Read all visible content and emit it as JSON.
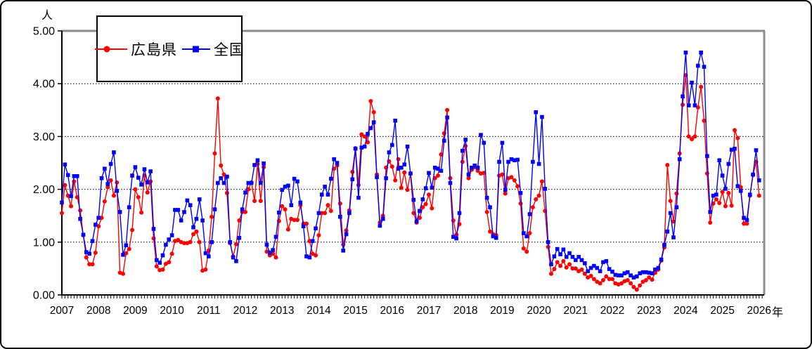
{
  "chart_data": {
    "type": "line",
    "title": "",
    "y_axis": {
      "unit": "人",
      "min": 0,
      "max": 5,
      "tick_labels": [
        "0.00",
        "1.00",
        "2.00",
        "3.00",
        "4.00",
        "5.00"
      ],
      "gridlines": "dotted at 1.00-4.00"
    },
    "x_axis": {
      "unit": "年",
      "interval": "monthly",
      "start": "2007-01",
      "end": "2026-01",
      "years": [
        2007,
        2008,
        2009,
        2010,
        2011,
        2012,
        2013,
        2014,
        2015,
        2016,
        2017,
        2018,
        2019,
        2020,
        2021,
        2022,
        2023,
        2024,
        2025,
        2026
      ]
    },
    "legend_position": "top-left",
    "series": [
      {
        "name": "広島県",
        "color": "#FF0000",
        "marker": "circle",
        "values": [
          1.55,
          2.08,
          1.88,
          1.68,
          2.15,
          1.85,
          1.6,
          1.13,
          0.71,
          0.58,
          0.58,
          0.8,
          1.3,
          1.46,
          1.77,
          2.04,
          2.17,
          1.88,
          2.13,
          0.42,
          0.4,
          0.79,
          0.87,
          1.23,
          2.0,
          1.85,
          1.56,
          2.26,
          1.94,
          2.15,
          1.07,
          0.54,
          0.47,
          0.48,
          0.59,
          0.62,
          0.78,
          1.02,
          1.04,
          1.0,
          0.98,
          0.98,
          1.0,
          1.15,
          1.2,
          1.0,
          0.46,
          0.48,
          0.84,
          1.48,
          2.68,
          3.72,
          2.45,
          2.28,
          1.93,
          0.98,
          0.73,
          0.96,
          1.41,
          1.57,
          1.57,
          2.0,
          2.13,
          1.78,
          2.48,
          1.78,
          2.42,
          0.82,
          0.75,
          0.78,
          0.71,
          1.4,
          1.68,
          1.62,
          1.24,
          1.44,
          1.42,
          1.42,
          1.7,
          1.35,
          1.35,
          1.02,
          0.78,
          0.75,
          1.13,
          1.55,
          1.55,
          1.7,
          1.59,
          2.39,
          2.45,
          1.73,
          0.95,
          1.22,
          1.6,
          2.33,
          2.78,
          2.08,
          3.04,
          3.0,
          2.89,
          3.67,
          3.46,
          2.28,
          1.37,
          1.5,
          2.41,
          2.53,
          2.43,
          2.17,
          2.57,
          2.03,
          2.32,
          1.99,
          2.3,
          1.55,
          1.37,
          1.46,
          1.66,
          1.72,
          1.9,
          1.64,
          2.21,
          2.26,
          2.66,
          3.06,
          3.5,
          2.21,
          1.41,
          1.14,
          1.34,
          2.52,
          2.82,
          2.21,
          2.37,
          2.42,
          2.35,
          2.3,
          2.31,
          1.57,
          1.2,
          1.15,
          1.13,
          2.26,
          2.28,
          1.92,
          2.21,
          2.23,
          2.17,
          2.06,
          1.73,
          0.88,
          0.82,
          1.17,
          1.66,
          1.81,
          1.88,
          2.15,
          1.59,
          0.91,
          0.4,
          0.49,
          0.62,
          0.55,
          0.64,
          0.52,
          0.58,
          0.5,
          0.5,
          0.45,
          0.48,
          0.4,
          0.33,
          0.36,
          0.3,
          0.25,
          0.22,
          0.28,
          0.35,
          0.3,
          0.3,
          0.22,
          0.2,
          0.22,
          0.26,
          0.28,
          0.22,
          0.15,
          0.1,
          0.18,
          0.25,
          0.28,
          0.33,
          0.29,
          0.42,
          0.48,
          0.65,
          0.9,
          2.46,
          1.78,
          1.39,
          1.92,
          2.68,
          3.6,
          4.16,
          3.0,
          2.95,
          3.0,
          3.55,
          3.94,
          3.3,
          2.3,
          1.37,
          1.73,
          1.81,
          1.74,
          1.95,
          1.68,
          1.93,
          1.69,
          3.12,
          2.97,
          2.04,
          1.35,
          1.35,
          1.88,
          2.27,
          2.52,
          1.88
        ]
      },
      {
        "name": "全国",
        "color": "#0000FF",
        "marker": "square",
        "values": [
          1.75,
          2.47,
          2.27,
          1.87,
          2.25,
          2.25,
          1.44,
          1.14,
          0.81,
          0.78,
          1.02,
          1.33,
          1.46,
          2.21,
          2.39,
          2.1,
          2.48,
          2.7,
          1.97,
          1.57,
          0.76,
          0.94,
          1.66,
          2.26,
          2.42,
          2.22,
          2.09,
          2.38,
          2.13,
          2.34,
          1.25,
          0.66,
          0.61,
          0.75,
          0.95,
          1.05,
          1.13,
          1.61,
          1.61,
          1.41,
          1.57,
          1.79,
          1.7,
          1.28,
          1.44,
          1.81,
          1.41,
          0.79,
          0.73,
          1.0,
          1.62,
          2.12,
          2.21,
          2.12,
          2.24,
          1.0,
          0.71,
          0.64,
          1.08,
          1.62,
          1.94,
          2.12,
          2.12,
          2.46,
          2.55,
          2.12,
          2.49,
          0.95,
          0.8,
          0.85,
          1.1,
          1.56,
          1.99,
          2.05,
          2.07,
          1.7,
          2.2,
          2.15,
          1.75,
          1.3,
          0.73,
          0.71,
          1.02,
          1.26,
          1.55,
          1.9,
          2.05,
          1.9,
          2.2,
          2.57,
          2.5,
          1.48,
          0.84,
          1.15,
          1.55,
          2.19,
          2.77,
          1.84,
          2.79,
          2.81,
          3.05,
          3.16,
          3.27,
          2.23,
          1.31,
          1.44,
          2.21,
          2.7,
          2.84,
          3.3,
          2.39,
          2.41,
          2.47,
          2.81,
          2.3,
          1.8,
          1.39,
          1.59,
          1.81,
          2.02,
          2.31,
          2.03,
          2.41,
          2.39,
          2.35,
          2.92,
          3.36,
          2.12,
          1.1,
          1.07,
          1.55,
          2.73,
          2.94,
          2.28,
          2.41,
          2.45,
          2.41,
          3.03,
          2.88,
          1.84,
          1.66,
          1.11,
          1.08,
          2.52,
          2.88,
          1.99,
          2.52,
          2.57,
          2.55,
          2.56,
          1.93,
          1.17,
          1.11,
          1.53,
          2.52,
          3.46,
          2.48,
          3.37,
          2.01,
          1.0,
          0.58,
          0.73,
          0.87,
          0.77,
          0.86,
          0.72,
          0.79,
          0.72,
          0.66,
          0.72,
          0.66,
          0.6,
          0.45,
          0.51,
          0.55,
          0.51,
          0.45,
          0.62,
          0.64,
          0.49,
          0.44,
          0.38,
          0.37,
          0.37,
          0.41,
          0.43,
          0.37,
          0.33,
          0.35,
          0.41,
          0.43,
          0.43,
          0.42,
          0.41,
          0.48,
          0.51,
          0.67,
          0.95,
          1.2,
          1.55,
          1.09,
          1.66,
          2.57,
          3.76,
          4.59,
          3.59,
          4.02,
          3.59,
          4.34,
          4.59,
          4.32,
          2.63,
          1.57,
          1.88,
          1.9,
          2.55,
          2.26,
          2.01,
          2.48,
          2.75,
          2.77,
          2.06,
          1.97,
          1.46,
          1.42,
          1.9,
          2.28,
          2.74,
          2.17
        ]
      }
    ]
  }
}
